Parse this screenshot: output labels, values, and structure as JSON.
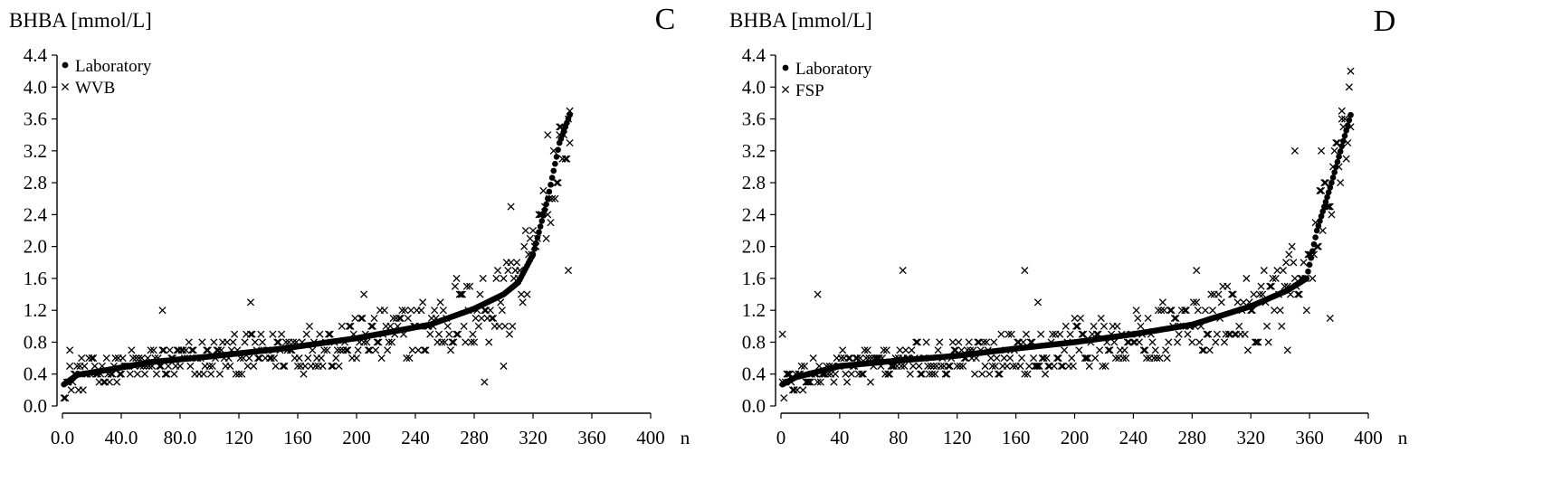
{
  "chart_data": [
    {
      "panel": "C",
      "type": "scatter",
      "title": "",
      "ylabel": "BHBA [mmol/L]",
      "xlabel": "n",
      "xlim": [
        0,
        400
      ],
      "ylim": [
        0,
        4.4
      ],
      "xticks": [
        0,
        40,
        80,
        120,
        160,
        200,
        240,
        280,
        320,
        360,
        400
      ],
      "xtick_labels": [
        "0.0",
        "40.0",
        "80.0",
        "120",
        "160",
        "200",
        "240",
        "280",
        "320",
        "360",
        "400"
      ],
      "yticks": [
        0,
        0.4,
        0.8,
        1.2,
        1.6,
        2.0,
        2.4,
        2.8,
        3.2,
        3.6,
        4.0,
        4.4
      ],
      "ytick_labels": [
        "0.0",
        "0.4",
        "0.8",
        "1.2",
        "1.6",
        "2.0",
        "2.4",
        "2.8",
        "3.2",
        "3.6",
        "4.0",
        "4.4"
      ],
      "legend": [
        {
          "label": "Laboratory",
          "marker": "dot"
        },
        {
          "label": "WVB",
          "marker": "x"
        }
      ],
      "legend_position": "top-left",
      "series": [
        {
          "name": "Laboratory",
          "marker": "dot",
          "n": 345,
          "curve": [
            [
              1,
              0.27
            ],
            [
              10,
              0.39
            ],
            [
              30,
              0.45
            ],
            [
              60,
              0.55
            ],
            [
              100,
              0.62
            ],
            [
              150,
              0.72
            ],
            [
              200,
              0.85
            ],
            [
              250,
              1.02
            ],
            [
              280,
              1.22
            ],
            [
              300,
              1.4
            ],
            [
              310,
              1.55
            ],
            [
              320,
              1.9
            ],
            [
              330,
              2.6
            ],
            [
              338,
              3.3
            ],
            [
              345,
              3.65
            ]
          ]
        },
        {
          "name": "WVB",
          "marker": "x",
          "n": 345,
          "notable_points": [
            [
              5,
              0.7
            ],
            [
              68,
              1.2
            ],
            [
              128,
              1.3
            ],
            [
              205,
              1.4
            ],
            [
              268,
              1.6
            ],
            [
              287,
              0.3
            ],
            [
              305,
              2.5
            ],
            [
              330,
              3.4
            ],
            [
              338,
              3.5
            ],
            [
              345,
              3.3
            ],
            [
              344,
              1.7
            ],
            [
              300,
              0.5
            ]
          ]
        }
      ]
    },
    {
      "panel": "D",
      "type": "scatter",
      "title": "",
      "ylabel": "BHBA [mmol/L]",
      "xlabel": "n",
      "xlim": [
        0,
        400
      ],
      "ylim": [
        0,
        4.4
      ],
      "xticks": [
        0,
        40,
        80,
        120,
        160,
        200,
        240,
        280,
        320,
        360,
        400
      ],
      "xtick_labels": [
        "0",
        "40",
        "80",
        "120",
        "160",
        "200",
        "240",
        "280",
        "320",
        "360",
        "400"
      ],
      "yticks": [
        0,
        0.4,
        0.8,
        1.2,
        1.6,
        2.0,
        2.4,
        2.8,
        3.2,
        3.6,
        4.0,
        4.4
      ],
      "ytick_labels": [
        "0.0",
        "0.4",
        "0.8",
        "1.2",
        "1.6",
        "2.0",
        "2.4",
        "2.8",
        "3.2",
        "3.6",
        "4.0",
        "4.4"
      ],
      "legend": [
        {
          "label": "Laboratory",
          "marker": "dot"
        },
        {
          "label": "FSP",
          "marker": "x"
        }
      ],
      "legend_position": "top-left",
      "series": [
        {
          "name": "Laboratory",
          "marker": "dot",
          "n": 388,
          "curve": [
            [
              1,
              0.27
            ],
            [
              10,
              0.36
            ],
            [
              40,
              0.5
            ],
            [
              80,
              0.57
            ],
            [
              120,
              0.63
            ],
            [
              160,
              0.72
            ],
            [
              200,
              0.8
            ],
            [
              240,
              0.9
            ],
            [
              280,
              1.02
            ],
            [
              320,
              1.25
            ],
            [
              345,
              1.45
            ],
            [
              358,
              1.6
            ],
            [
              365,
              2.2
            ],
            [
              375,
              2.8
            ],
            [
              388,
              3.65
            ]
          ]
        },
        {
          "name": "FSP",
          "marker": "x",
          "n": 388,
          "notable_points": [
            [
              1,
              0.9
            ],
            [
              25,
              1.4
            ],
            [
              83,
              1.7
            ],
            [
              166,
              1.7
            ],
            [
              175,
              1.3
            ],
            [
              283,
              1.7
            ],
            [
              350,
              3.2
            ],
            [
              368,
              3.2
            ],
            [
              382,
              3.7
            ],
            [
              388,
              4.2
            ],
            [
              374,
              1.1
            ],
            [
              345,
              0.7
            ]
          ]
        }
      ]
    }
  ],
  "panels": [
    {
      "letter": "C"
    },
    {
      "letter": "D"
    }
  ]
}
